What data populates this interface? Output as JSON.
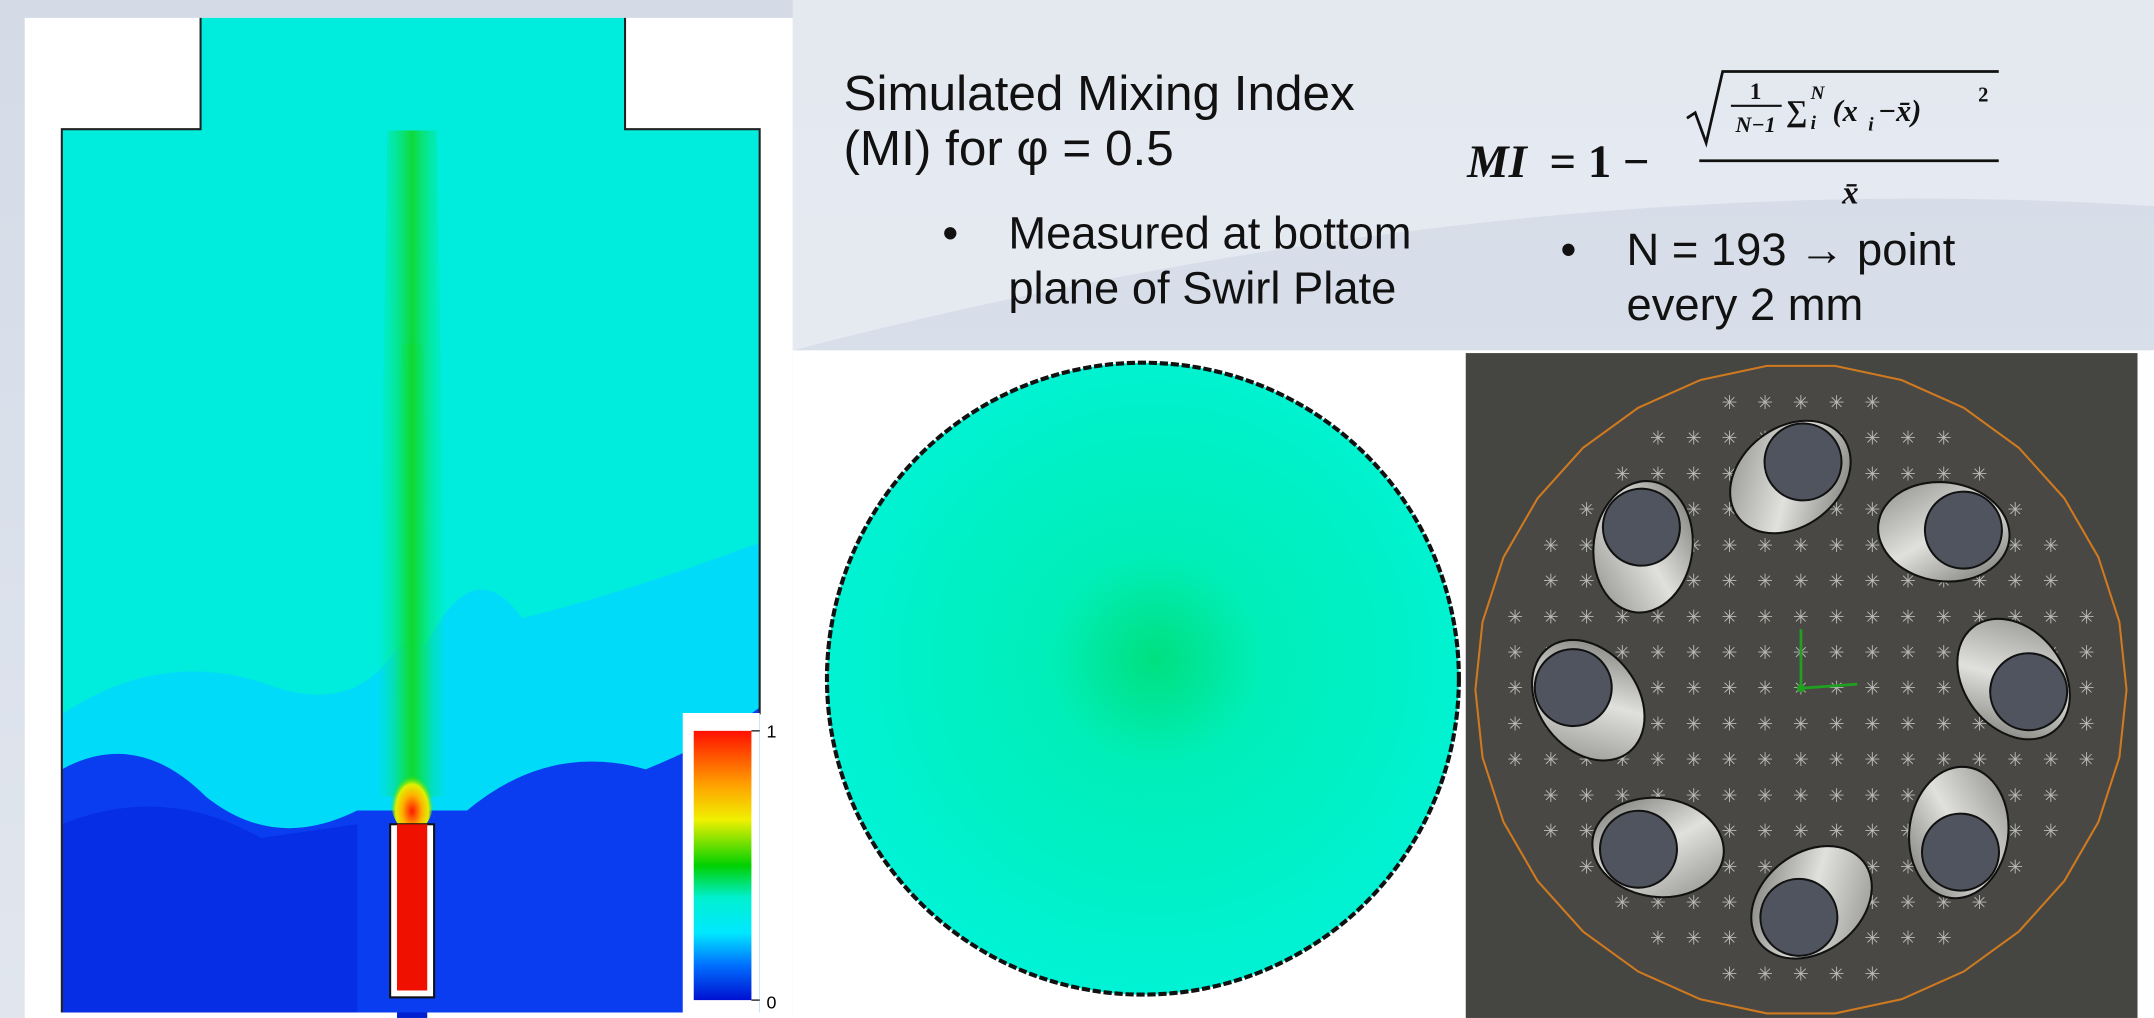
{
  "slide": {
    "title": "Simulated Mixing Index (MI) for φ = 0.5",
    "bullets_left": [
      "Measured at bottom plane of Swirl Plate"
    ],
    "bullets_right": [
      "N = 193 → point every 2 mm"
    ],
    "bullet_symbol": "•",
    "formula": {
      "lhs": "MI",
      "eq": "= 1 −",
      "inner_num": "1",
      "inner_den": "N−1",
      "sum": "∑",
      "sum_sub": "i",
      "sum_sup": "N",
      "term": "(x",
      "term_sub": "i",
      "term_rest": "−x̄)",
      "power": "2",
      "denominator": "x̄"
    },
    "colorbar": {
      "max_label": "1",
      "min_label": "0"
    }
  }
}
